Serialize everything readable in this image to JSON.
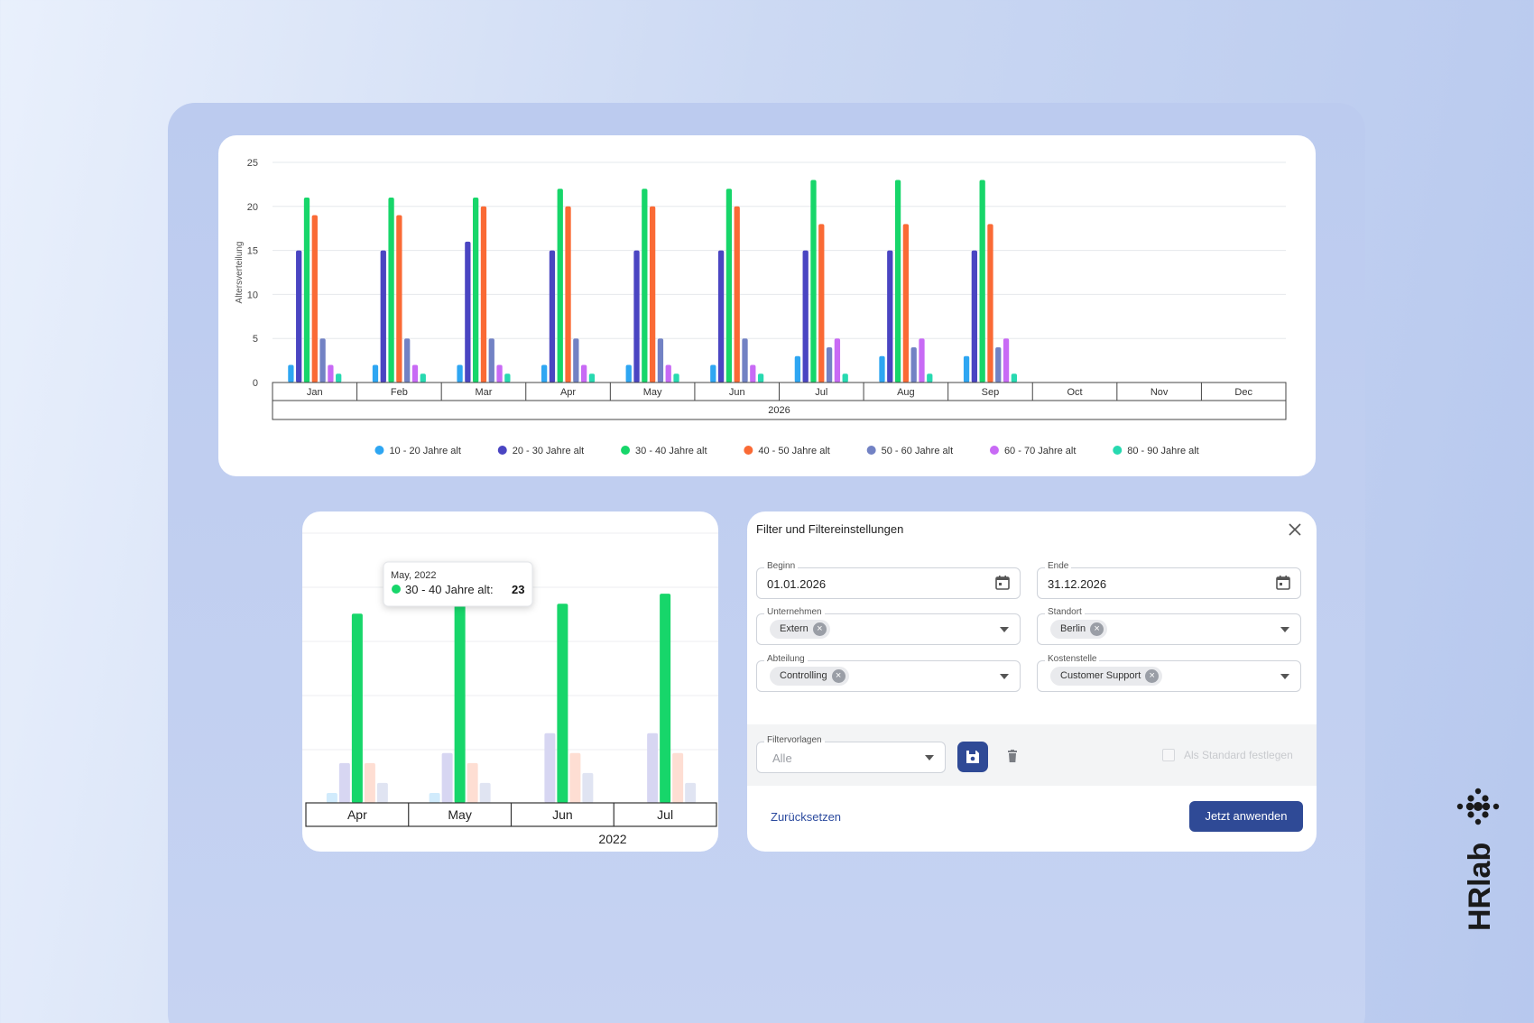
{
  "main_chart": {
    "chart_data": {
      "type": "bar",
      "ylabel": "Altersverteilung",
      "ylim": [
        0,
        25
      ],
      "yticks": [
        0,
        5,
        10,
        15,
        20,
        25
      ],
      "grid": true,
      "legend_position": "bottom",
      "categories": [
        "Jan",
        "Feb",
        "Mar",
        "Apr",
        "May",
        "Jun",
        "Jul",
        "Aug",
        "Sep",
        "Oct",
        "Nov",
        "Dec"
      ],
      "group_label": "2026",
      "series": [
        {
          "name": "10 - 20 Jahre alt",
          "color": "#2ea6f2",
          "values": [
            2,
            2,
            2,
            2,
            2,
            2,
            3,
            3,
            3,
            null,
            null,
            null
          ]
        },
        {
          "name": "20 - 30 Jahre alt",
          "color": "#4a45c2",
          "values": [
            15,
            15,
            16,
            15,
            15,
            15,
            15,
            15,
            15,
            null,
            null,
            null
          ]
        },
        {
          "name": "30 - 40 Jahre alt",
          "color": "#17d66a",
          "values": [
            21,
            21,
            21,
            22,
            22,
            22,
            23,
            23,
            23,
            null,
            null,
            null
          ]
        },
        {
          "name": "40 - 50 Jahre alt",
          "color": "#fa6a35",
          "values": [
            19,
            19,
            20,
            20,
            20,
            20,
            18,
            18,
            18,
            null,
            null,
            null
          ]
        },
        {
          "name": "50 - 60 Jahre alt",
          "color": "#7282c4",
          "values": [
            5,
            5,
            5,
            5,
            5,
            5,
            4,
            4,
            4,
            null,
            null,
            null
          ]
        },
        {
          "name": "60 - 70 Jahre alt",
          "color": "#c86af5",
          "values": [
            2,
            2,
            2,
            2,
            2,
            2,
            5,
            5,
            5,
            null,
            null,
            null
          ]
        },
        {
          "name": "80 - 90 Jahre alt",
          "color": "#27d9b0",
          "values": [
            1,
            1,
            1,
            1,
            1,
            1,
            1,
            1,
            1,
            null,
            null,
            null
          ]
        }
      ]
    }
  },
  "zoom_chart": {
    "chart_data": {
      "type": "bar",
      "categories": [
        "Apr",
        "May",
        "Jun",
        "Jul"
      ],
      "group_label": "2022",
      "highlighted_series": "30 - 40 Jahre alt",
      "ylim": [
        0,
        25
      ],
      "series": [
        {
          "name": "10 - 20 Jahre alt",
          "color": "#2ea6f2",
          "faded": true,
          "values": [
            1,
            1,
            null,
            null
          ]
        },
        {
          "name": "20 - 30 Jahre alt",
          "color": "#4a45c2",
          "faded": true,
          "values": [
            4,
            5,
            7,
            7
          ]
        },
        {
          "name": "30 - 40 Jahre alt",
          "color": "#17d66a",
          "faded": false,
          "values": [
            19,
            23,
            20,
            21
          ]
        },
        {
          "name": "40 - 50 Jahre alt",
          "color": "#fa6a35",
          "faded": true,
          "values": [
            4,
            4,
            5,
            5
          ]
        },
        {
          "name": "50 - 60 Jahre alt",
          "color": "#7282c4",
          "faded": true,
          "values": [
            2,
            2,
            3,
            2
          ]
        }
      ]
    },
    "tooltip": {
      "date": "May, 2022",
      "series": "30 - 40 Jahre alt:",
      "value": "23",
      "color": "#17d66a"
    }
  },
  "filter": {
    "title": "Filter und Filtereinstellungen",
    "begin_label": "Beginn",
    "begin_value": "01.01.2026",
    "end_label": "Ende",
    "end_value": "31.12.2026",
    "company_label": "Unternehmen",
    "company_chip": "Extern",
    "location_label": "Standort",
    "location_chip": "Berlin",
    "department_label": "Abteilung",
    "department_chip": "Controlling",
    "cost_center_label": "Kostenstelle",
    "cost_center_chip": "Customer Support",
    "presets_label": "Filtervorlagen",
    "presets_value": "Alle",
    "set_default_label": "Als Standard festlegen",
    "reset_label": "Zurücksetzen",
    "apply_label": "Jetzt anwenden",
    "accent_color": "#2f4a96"
  },
  "brand": {
    "logo_text": "HRlab"
  }
}
